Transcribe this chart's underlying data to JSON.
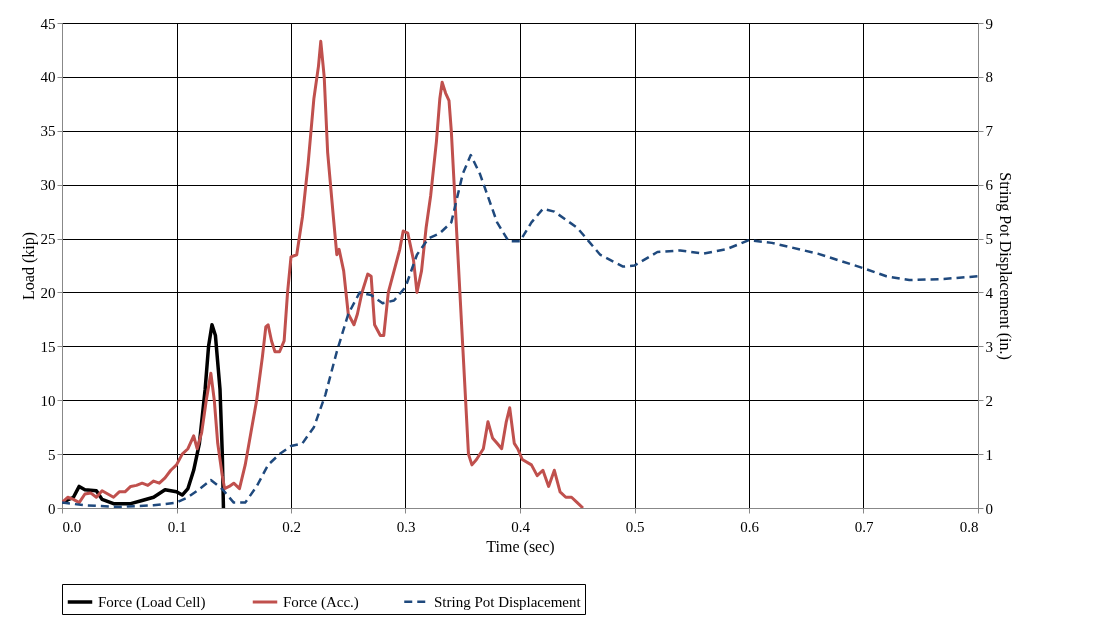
{
  "chart_data": {
    "type": "line",
    "xlabel": "Time (sec)",
    "ylabel": "Load (kip)",
    "y2label": "String Pot Displacement (in.)",
    "xlim": [
      0,
      0.8
    ],
    "xticks": [
      {
        "value": 0,
        "label": "0.0"
      },
      0.1,
      0.2,
      0.3,
      0.4,
      0.5,
      0.6,
      0.7,
      0.8
    ],
    "ylim": [
      0,
      45
    ],
    "yticks": [
      0,
      5,
      10,
      15,
      20,
      25,
      30,
      35,
      40,
      45
    ],
    "y2lim": [
      0,
      9
    ],
    "y2ticks": [
      0,
      1,
      2,
      3,
      4,
      5,
      6,
      7,
      8,
      9
    ],
    "grid": true,
    "legend": "bottom",
    "marker": "none",
    "series": [
      {
        "name": "Force (Load Cell)",
        "color": "#000000",
        "line_style": "solid",
        "x": [
          0,
          0.01,
          0.015,
          0.02,
          0.03,
          0.035,
          0.045,
          0.06,
          0.07,
          0.08,
          0.09,
          0.1,
          0.105,
          0.11,
          0.115,
          0.12,
          0.125,
          0.128,
          0.131,
          0.134,
          0.138,
          0.14,
          0.141
        ],
        "values": [
          0.5,
          1,
          2,
          1.7,
          1.6,
          0.8,
          0.4,
          0.4,
          0.7,
          1,
          1.7,
          1.5,
          1.2,
          1.8,
          3.5,
          6,
          11,
          15,
          17,
          16,
          11,
          5,
          0
        ]
      },
      {
        "name": "Force (Acc.)",
        "color": "#c0504d",
        "line_style": "solid",
        "x": [
          0,
          0.005,
          0.01,
          0.015,
          0.02,
          0.025,
          0.03,
          0.035,
          0.04,
          0.045,
          0.05,
          0.055,
          0.06,
          0.065,
          0.07,
          0.075,
          0.08,
          0.085,
          0.09,
          0.095,
          0.1,
          0.105,
          0.11,
          0.115,
          0.118,
          0.122,
          0.126,
          0.13,
          0.133,
          0.136,
          0.14,
          0.142,
          0.146,
          0.15,
          0.155,
          0.16,
          0.165,
          0.17,
          0.175,
          0.178,
          0.18,
          0.183,
          0.186,
          0.19,
          0.194,
          0.197,
          0.2,
          0.205,
          0.21,
          0.215,
          0.22,
          0.224,
          0.226,
          0.229,
          0.232,
          0.237,
          0.24,
          0.242,
          0.246,
          0.25,
          0.255,
          0.258,
          0.262,
          0.267,
          0.27,
          0.273,
          0.278,
          0.281,
          0.285,
          0.29,
          0.295,
          0.298,
          0.302,
          0.307,
          0.31,
          0.314,
          0.318,
          0.322,
          0.327,
          0.33,
          0.332,
          0.335,
          0.338,
          0.34,
          0.345,
          0.35,
          0.355,
          0.358,
          0.362,
          0.368,
          0.372,
          0.376,
          0.38,
          0.384,
          0.388,
          0.391,
          0.395,
          0.398,
          0.402,
          0.41,
          0.415,
          0.42,
          0.425,
          0.43,
          0.435,
          0.44,
          0.445,
          0.45,
          0.455
        ],
        "values": [
          0.5,
          1,
          0.8,
          0.5,
          1.3,
          1.4,
          1,
          1.6,
          1.3,
          1,
          1.5,
          1.5,
          2,
          2.1,
          2.3,
          2.1,
          2.5,
          2.3,
          2.8,
          3.5,
          4,
          5,
          5.5,
          6.7,
          5.5,
          7,
          10,
          12.5,
          10,
          6,
          3,
          1.8,
          2,
          2.3,
          1.8,
          4,
          7,
          10,
          14,
          16.8,
          17,
          15.5,
          14.5,
          14.5,
          15.5,
          20,
          23.3,
          23.5,
          27,
          32,
          38,
          41,
          43.3,
          40,
          33,
          27,
          23.5,
          24,
          22,
          18,
          17,
          18,
          20,
          21.7,
          21.5,
          17,
          16,
          16,
          20,
          22,
          24,
          25.7,
          25.5,
          23,
          20,
          22,
          26,
          29,
          34,
          38,
          39.5,
          38.5,
          37.8,
          35,
          25,
          15,
          5,
          4,
          4.5,
          5.5,
          8,
          6.5,
          6,
          5.5,
          8,
          9.3,
          6,
          5.5,
          4.5,
          4,
          3,
          3.5,
          2,
          3.5,
          1.5,
          1,
          1,
          0.5,
          0
        ]
      },
      {
        "name": "String Pot Displacement",
        "color": "#1f497d",
        "line_style": "dashed",
        "axis": "y2",
        "x": [
          0,
          0.02,
          0.05,
          0.08,
          0.1,
          0.11,
          0.12,
          0.13,
          0.14,
          0.15,
          0.16,
          0.17,
          0.18,
          0.19,
          0.2,
          0.21,
          0.22,
          0.23,
          0.24,
          0.25,
          0.26,
          0.27,
          0.28,
          0.29,
          0.3,
          0.31,
          0.32,
          0.33,
          0.34,
          0.35,
          0.357,
          0.365,
          0.38,
          0.39,
          0.4,
          0.41,
          0.42,
          0.43,
          0.45,
          0.47,
          0.49,
          0.5,
          0.52,
          0.54,
          0.56,
          0.58,
          0.6,
          0.62,
          0.66,
          0.7,
          0.72,
          0.74,
          0.77,
          0.8
        ],
        "values": [
          0.1,
          0.05,
          0.02,
          0.05,
          0.1,
          0.2,
          0.35,
          0.52,
          0.35,
          0.1,
          0.1,
          0.4,
          0.8,
          1.0,
          1.15,
          1.2,
          1.5,
          2.1,
          2.9,
          3.6,
          4.0,
          3.95,
          3.8,
          3.85,
          4.1,
          4.7,
          5.0,
          5.1,
          5.3,
          6.2,
          6.55,
          6.2,
          5.3,
          4.95,
          4.95,
          5.3,
          5.55,
          5.5,
          5.2,
          4.7,
          4.48,
          4.5,
          4.75,
          4.78,
          4.72,
          4.8,
          4.97,
          4.92,
          4.72,
          4.45,
          4.3,
          4.23,
          4.25,
          4.3
        ]
      }
    ]
  }
}
